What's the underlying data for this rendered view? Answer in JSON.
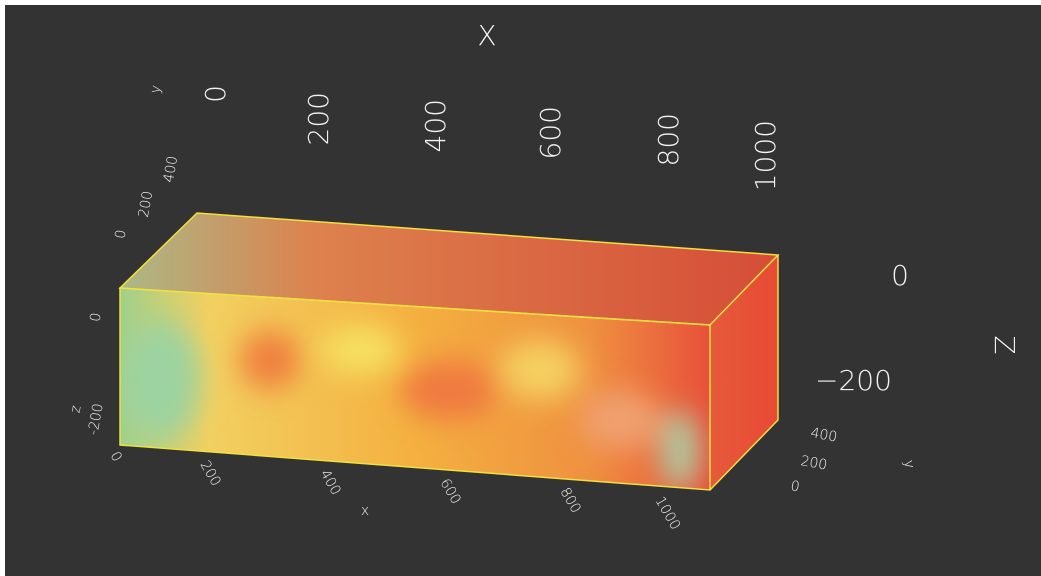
{
  "top_axis": {
    "title": "X",
    "ticks": [
      "0",
      "200",
      "400",
      "600",
      "800",
      "1000"
    ]
  },
  "right_z_axis": {
    "title": "Z",
    "ticks": [
      "0",
      "−200"
    ]
  },
  "right_y_axis": {
    "title": "y",
    "ticks": [
      "0",
      "200",
      "400"
    ]
  },
  "left_y_axis": {
    "title": "y",
    "ticks": [
      "0",
      "200",
      "400"
    ]
  },
  "bottom_x_axis": {
    "title": "x",
    "ticks": [
      "0",
      "200",
      "400",
      "600",
      "800",
      "1000"
    ]
  },
  "left_z_axis": {
    "title": "z",
    "ticks": [
      "0",
      "-200"
    ]
  }
}
